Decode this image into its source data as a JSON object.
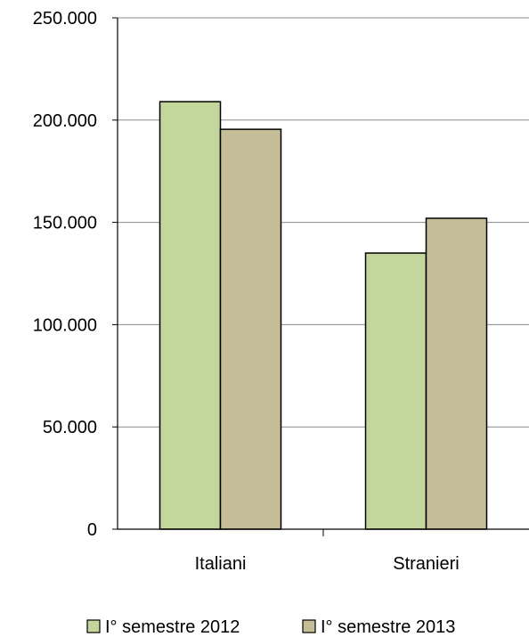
{
  "chart_data": {
    "type": "bar",
    "categories": [
      "Italiani",
      "Stranieri"
    ],
    "series": [
      {
        "name": "I° semestre 2012",
        "values": [
          209000,
          135000
        ],
        "color": "#C3D69B"
      },
      {
        "name": "I° semestre 2013",
        "values": [
          195500,
          152000
        ],
        "color": "#C4BD97"
      }
    ],
    "ylim": [
      0,
      250000
    ],
    "yticks": [
      0,
      50000,
      100000,
      150000,
      200000,
      250000
    ],
    "ytick_labels": [
      "0",
      "50.000",
      "100.000",
      "150.000",
      "200.000",
      "250.000"
    ],
    "grid": true,
    "legend": "bottom"
  }
}
